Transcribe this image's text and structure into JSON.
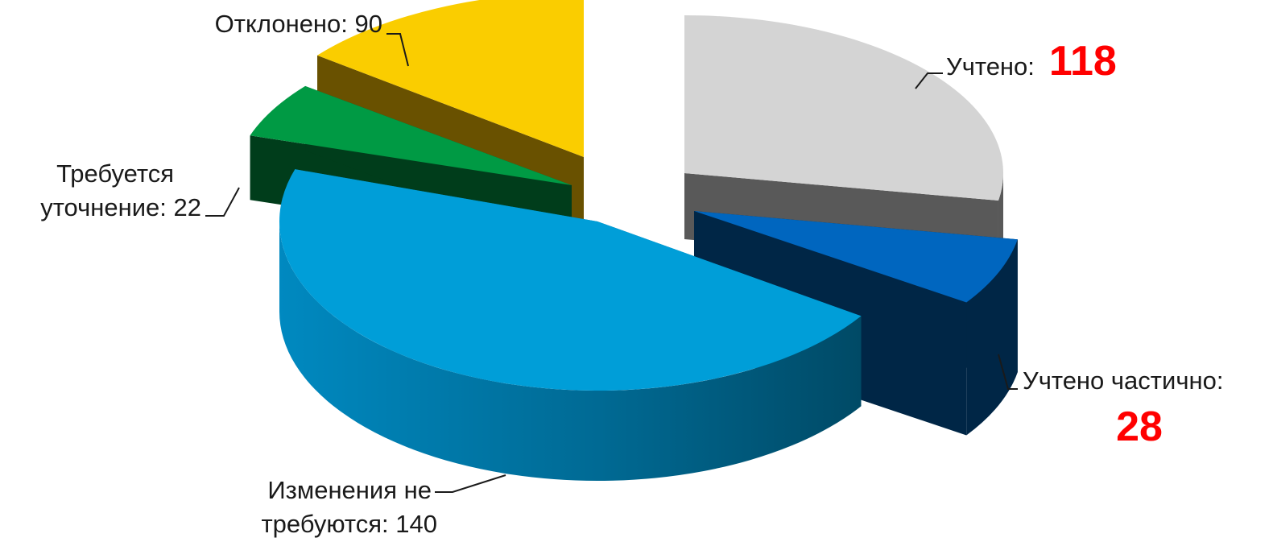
{
  "chart_data": {
    "type": "pie",
    "variant": "3d-exploded",
    "slices": [
      {
        "key": "uchteno",
        "name": "Учтено",
        "label": "Учтено:",
        "value": 118,
        "value_text": "118",
        "value_highlight": true,
        "top_color": "#d4d4d4",
        "side_color": "#595959"
      },
      {
        "key": "chastichno",
        "name": "Учтено частично",
        "label": "Учтено частично:",
        "value": 28,
        "value_text": "28",
        "value_highlight": true,
        "top_color": "#0066bf",
        "side_color": "#002646"
      },
      {
        "key": "net",
        "name": "Изменения не требуются",
        "label_line1": "Изменения не",
        "label_line2": "требуются: 140",
        "value": 140,
        "value_highlight": false,
        "top_color": "#009ed8",
        "side_color": "#006d96"
      },
      {
        "key": "utochnenie",
        "name": "Требуется уточнение",
        "label_line1": "Требуется",
        "label_line2": "уточнение: 22",
        "value": 22,
        "value_highlight": false,
        "top_color": "#009a44",
        "side_color": "#003d1b"
      },
      {
        "key": "otkloneno",
        "name": "Отклонено",
        "label": "Отклонено: 90",
        "value": 90,
        "value_highlight": false,
        "top_color": "#facd00",
        "side_color": "#695100"
      }
    ]
  }
}
